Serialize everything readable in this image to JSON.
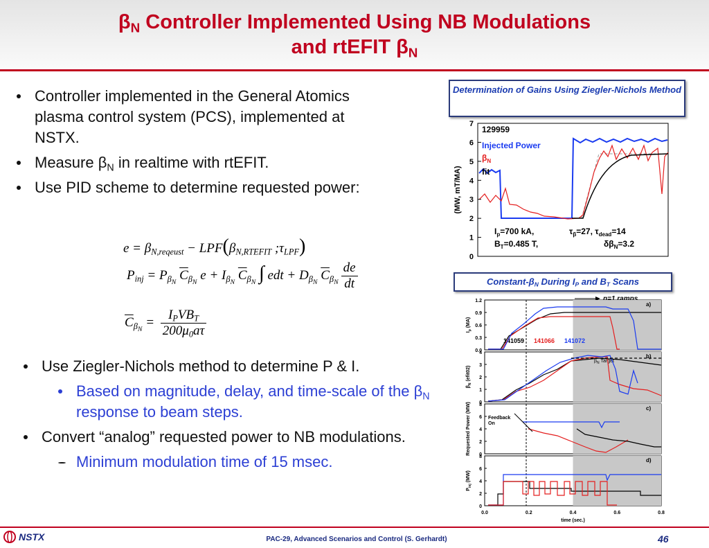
{
  "header": {
    "title": [
      "β",
      "N",
      " Controller Implemented Using NB Modulations",
      "and rtEFIT ",
      "β",
      "N"
    ]
  },
  "top_bullets": [
    [
      "Controller implemented in the General Atomics plasma control system (PCS), implemented at NSTX."
    ],
    [
      "Measure ",
      "β",
      "N",
      " in realtime with rtEFIT."
    ],
    [
      "Use PID scheme to determine requested power:"
    ]
  ],
  "equations": {
    "eq1": [
      "e = β",
      "N,reqeust",
      " − LPF",
      "(",
      "β",
      "N,RTEFIT",
      " ;τ",
      "LPF",
      ")"
    ],
    "eq2": [
      "P",
      "inj",
      " = P",
      "β",
      "N",
      "C",
      "β",
      "N",
      " e + I",
      "β",
      "N",
      "C",
      "β",
      "N",
      "∫",
      " edt + D",
      "β",
      "N",
      "C",
      "β",
      "N",
      "de",
      "dt"
    ],
    "eq3": [
      "C",
      "β",
      "N",
      " = ",
      "I",
      "P",
      "VB",
      "T",
      "200μ",
      "0",
      "aτ"
    ]
  },
  "bottom_bullets": [
    [
      "Use Ziegler-Nichols method to determine P & I."
    ],
    [
      "Based on magnitude, delay, and time-scale of the ",
      "β",
      "N",
      " response to beam steps."
    ],
    [
      "Convert “analog” requested power to NB modulations."
    ],
    [
      "Minimum modulation time of 15 msec."
    ]
  ],
  "figure1": {
    "box": "Determination of Gains Using Ziegler-Nichols Method",
    "yticks": [
      "0",
      "1",
      "2",
      "3",
      "4",
      "5",
      "6",
      "7"
    ],
    "ylabel": "(MW, mT/MA)",
    "shot": "129959",
    "legend": [
      [
        "Injected Power"
      ],
      [
        "β",
        "N"
      ],
      [
        "fit"
      ]
    ],
    "annotation": [
      [
        "I",
        "p",
        "=700  kA,",
        "τ",
        "β",
        "=27, τ",
        "dead",
        "=14"
      ],
      [
        "B",
        "T",
        "=0.485  T,",
        "δβ",
        "N",
        "=3.2"
      ]
    ]
  },
  "figure2": {
    "box": [
      "Constant-",
      "β",
      "N",
      " During I",
      "P",
      " and B",
      "T",
      " Scans"
    ],
    "note": "n=1 ramps",
    "panels": [
      {
        "tag": "a)",
        "ylabel": [
          "I",
          "p",
          " (MA)"
        ],
        "yticks": [
          "0.0",
          "0.3",
          "0.6",
          "0.9",
          "1.2"
        ]
      },
      {
        "tag": "b)",
        "ylabel": [
          "β",
          "N",
          " (efit02)"
        ],
        "yticks": [
          "0",
          "1",
          "2",
          "3",
          "4"
        ]
      },
      {
        "tag": "c)",
        "ylabel": [
          "Requested Power (MW)"
        ],
        "yticks": [
          "0",
          "2",
          "4",
          "6",
          "8"
        ]
      },
      {
        "tag": "d)",
        "ylabel": [
          "P",
          "inj",
          " (MW)"
        ],
        "yticks": [
          "0",
          "2",
          "4",
          "6",
          "8"
        ]
      }
    ],
    "shots": [
      "141059",
      "141066",
      "141072"
    ],
    "target": [
      "β",
      "N",
      " Target"
    ],
    "feedback": [
      "Feedback",
      "On"
    ],
    "xticks": [
      "0.0",
      "0.2",
      "0.4",
      "0.6",
      "0.8"
    ],
    "xlabel": "time (sec.)"
  },
  "footer": {
    "logo": "NSTX",
    "text": "PAC-29, Advanced Scenarios and Control (S. Gerhardt)",
    "page": "46"
  }
}
